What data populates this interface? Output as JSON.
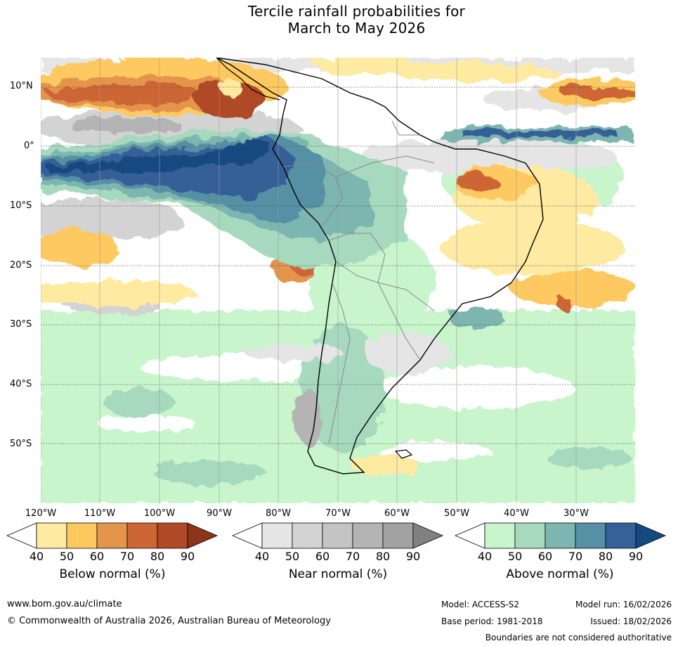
{
  "title": {
    "line1": "Tercile rainfall probabilities for",
    "line2": "March to May 2026"
  },
  "map": {
    "lat_labels": [
      "10°N",
      "0°",
      "10°S",
      "20°S",
      "30°S",
      "40°S",
      "50°S"
    ],
    "lon_labels": [
      "120°W",
      "110°W",
      "100°W",
      "90°W",
      "80°W",
      "70°W",
      "60°W",
      "50°W",
      "40°W",
      "30°W"
    ]
  },
  "legends": {
    "below": {
      "title": "Below normal (%)",
      "ticks": [
        "40",
        "50",
        "60",
        "70",
        "80",
        "90"
      ],
      "colors": [
        "#ffffff",
        "#ffeaa2",
        "#fdc960",
        "#e4944b",
        "#cc6635",
        "#b04a28",
        "#8e3419"
      ]
    },
    "near": {
      "title": "Near normal (%)",
      "ticks": [
        "40",
        "50",
        "60",
        "70",
        "80",
        "90"
      ],
      "colors": [
        "#ffffff",
        "#e5e5e5",
        "#d3d3d3",
        "#c4c4c4",
        "#b4b4b4",
        "#a2a2a2",
        "#808080"
      ]
    },
    "above": {
      "title": "Above normal (%)",
      "ticks": [
        "40",
        "50",
        "60",
        "70",
        "80",
        "90"
      ],
      "colors": [
        "#ffffff",
        "#c9f5cd",
        "#a6d9bd",
        "#7db5b0",
        "#5690a4",
        "#346197",
        "#144a80"
      ]
    }
  },
  "footer": {
    "website": "www.bom.gov.au/climate",
    "copyright": "© Commonwealth of Australia 2026, Australian Bureau of Meteorology",
    "model": "Model: ACCESS-S2",
    "model_run": "Model run: 16/02/2026",
    "base_period": "Base period: 1981-2018",
    "issued": "Issued: 18/02/2026",
    "disclaimer": "Boundaries are not considered authoritative"
  }
}
